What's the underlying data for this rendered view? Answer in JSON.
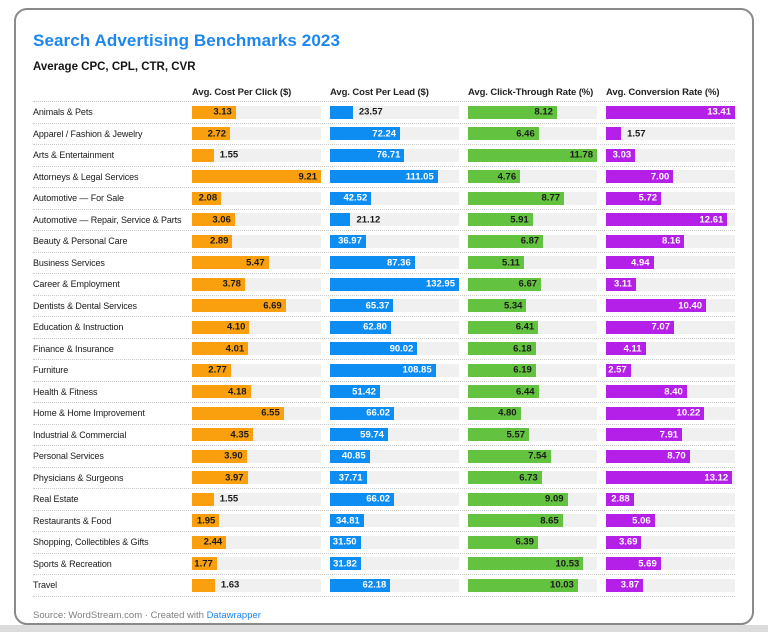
{
  "window": {
    "background": "#FFFFFF",
    "bottom_strip_color": "#DCDCDC",
    "card_border_color": "#8A8A8A"
  },
  "footer": {
    "source": "Source: WordStream.com",
    "separator": "·",
    "created": "Created with",
    "link": "Datawrapper",
    "link_color": "#1D87F0"
  },
  "chart_data": {
    "type": "bar",
    "orientation": "horizontal",
    "title": "Search Advertising Benchmarks 2023",
    "subtitle": "Average CPC, CPL, CTR, CVR",
    "title_color": "#1D87F0",
    "track_color": "#F0F0F0",
    "grid": "dotted-row-separators",
    "legend_position": "none",
    "value_format": "2-decimals",
    "categories": [
      "Animals & Pets",
      "Apparel / Fashion & Jewelry",
      "Arts & Entertainment",
      "Attorneys & Legal Services",
      "Automotive — For Sale",
      "Automotive — Repair, Service & Parts",
      "Beauty & Personal Care",
      "Business Services",
      "Career & Employment",
      "Dentists & Dental Services",
      "Education & Instruction",
      "Finance & Insurance",
      "Furniture",
      "Health & Fitness",
      "Home & Home Improvement",
      "Industrial & Commercial",
      "Personal Services",
      "Physicians & Surgeons",
      "Real Estate",
      "Restaurants & Food",
      "Shopping, Collectibles & Gifts",
      "Sports & Recreation",
      "Travel"
    ],
    "series": [
      {
        "name": "Avg. Cost Per Click ($)",
        "color": "#FAA00E",
        "value_text_color": "#1A1A1A",
        "axis_max": 9.21,
        "values": [
          3.13,
          2.72,
          1.55,
          9.21,
          2.08,
          3.06,
          2.89,
          5.47,
          3.78,
          6.69,
          4.1,
          4.01,
          2.77,
          4.18,
          6.55,
          4.35,
          3.9,
          3.97,
          1.55,
          1.95,
          2.44,
          1.77,
          1.63
        ]
      },
      {
        "name": "Avg. Cost Per Lead ($)",
        "color": "#0D8CF2",
        "value_text_color": "#FFFFFF",
        "axis_max": 132.95,
        "values": [
          23.57,
          72.24,
          76.71,
          111.05,
          42.52,
          21.12,
          36.97,
          87.36,
          132.95,
          65.37,
          62.8,
          90.02,
          108.85,
          51.42,
          66.02,
          59.74,
          40.85,
          37.71,
          66.02,
          34.81,
          31.5,
          31.82,
          62.18
        ]
      },
      {
        "name": "Avg. Click-Through Rate (%)",
        "color": "#63C23F",
        "value_text_color": "#1A1A1A",
        "axis_max": 11.78,
        "values": [
          8.12,
          6.46,
          11.78,
          4.76,
          8.77,
          5.91,
          6.87,
          5.11,
          6.67,
          5.34,
          6.41,
          6.18,
          6.19,
          6.44,
          4.8,
          5.57,
          7.54,
          6.73,
          9.09,
          8.65,
          6.39,
          10.53,
          10.03
        ]
      },
      {
        "name": "Avg. Conversion Rate (%)",
        "color": "#B520E8",
        "value_text_color": "#FFFFFF",
        "axis_max": 13.41,
        "values": [
          13.41,
          1.57,
          3.03,
          7.0,
          5.72,
          12.61,
          8.16,
          4.94,
          3.11,
          10.4,
          7.07,
          4.11,
          2.57,
          8.4,
          10.22,
          7.91,
          8.7,
          13.12,
          2.88,
          5.06,
          3.69,
          5.69,
          3.87
        ]
      }
    ]
  }
}
